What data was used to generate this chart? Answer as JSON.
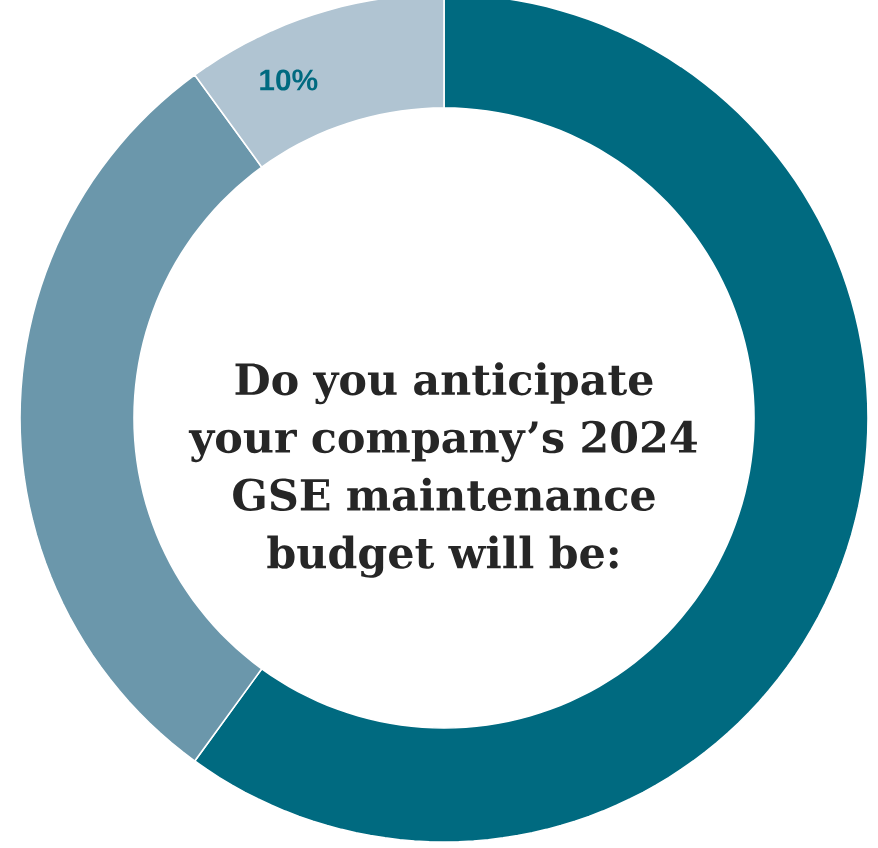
{
  "chart_data": {
    "type": "donut",
    "title": "Do you anticipate your company’s 2024 GSE maintenance budget will be:",
    "categories": [
      null,
      null,
      null
    ],
    "values": [
      60,
      30,
      10
    ],
    "colors": [
      "#006a80",
      "#6b97ab",
      "#b0c4d2"
    ],
    "value_labels": [
      null,
      null,
      "10%"
    ]
  }
}
